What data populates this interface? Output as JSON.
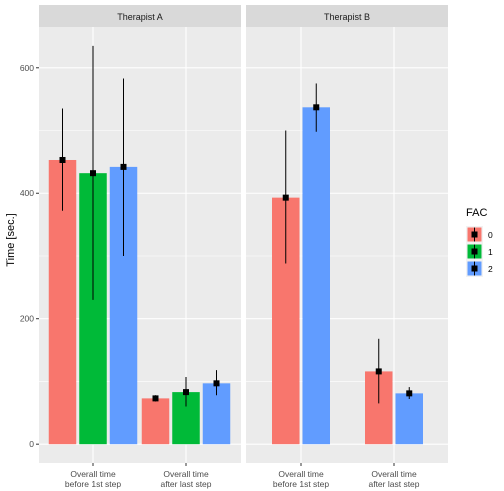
{
  "chart_data": {
    "type": "bar",
    "ylabel": "Time [sec.]",
    "y_ticks": [
      0,
      200,
      400,
      600
    ],
    "ylim": [
      -30,
      665
    ],
    "categories": [
      "Overall time\nbefore 1st step",
      "Overall time\nafter last step"
    ],
    "legend": {
      "title": "FAC",
      "placement": "right",
      "entries": [
        {
          "key": "0",
          "color": "#F8766D"
        },
        {
          "key": "1",
          "color": "#00BA38"
        },
        {
          "key": "2",
          "color": "#619CFF"
        }
      ]
    },
    "panels": [
      {
        "title": "Therapist A",
        "groups": [
          {
            "category_index": 0,
            "bars": [
              {
                "fac": "0",
                "value": 453,
                "err_low": 372,
                "err_high": 535
              },
              {
                "fac": "1",
                "value": 432,
                "err_low": 230,
                "err_high": 635
              },
              {
                "fac": "2",
                "value": 442,
                "err_low": 300,
                "err_high": 583
              }
            ]
          },
          {
            "category_index": 1,
            "bars": [
              {
                "fac": "0",
                "value": 73,
                "err_low": 68,
                "err_high": 78
              },
              {
                "fac": "1",
                "value": 83,
                "err_low": 60,
                "err_high": 107
              },
              {
                "fac": "2",
                "value": 97,
                "err_low": 78,
                "err_high": 118
              }
            ]
          }
        ]
      },
      {
        "title": "Therapist B",
        "groups": [
          {
            "category_index": 0,
            "bars": [
              {
                "fac": "0",
                "value": 393,
                "err_low": 288,
                "err_high": 500
              },
              {
                "fac": "2",
                "value": 537,
                "err_low": 498,
                "err_high": 575
              }
            ]
          },
          {
            "category_index": 1,
            "bars": [
              {
                "fac": "0",
                "value": 116,
                "err_low": 65,
                "err_high": 168
              },
              {
                "fac": "2",
                "value": 81,
                "err_low": 72,
                "err_high": 91
              }
            ]
          }
        ]
      }
    ]
  }
}
